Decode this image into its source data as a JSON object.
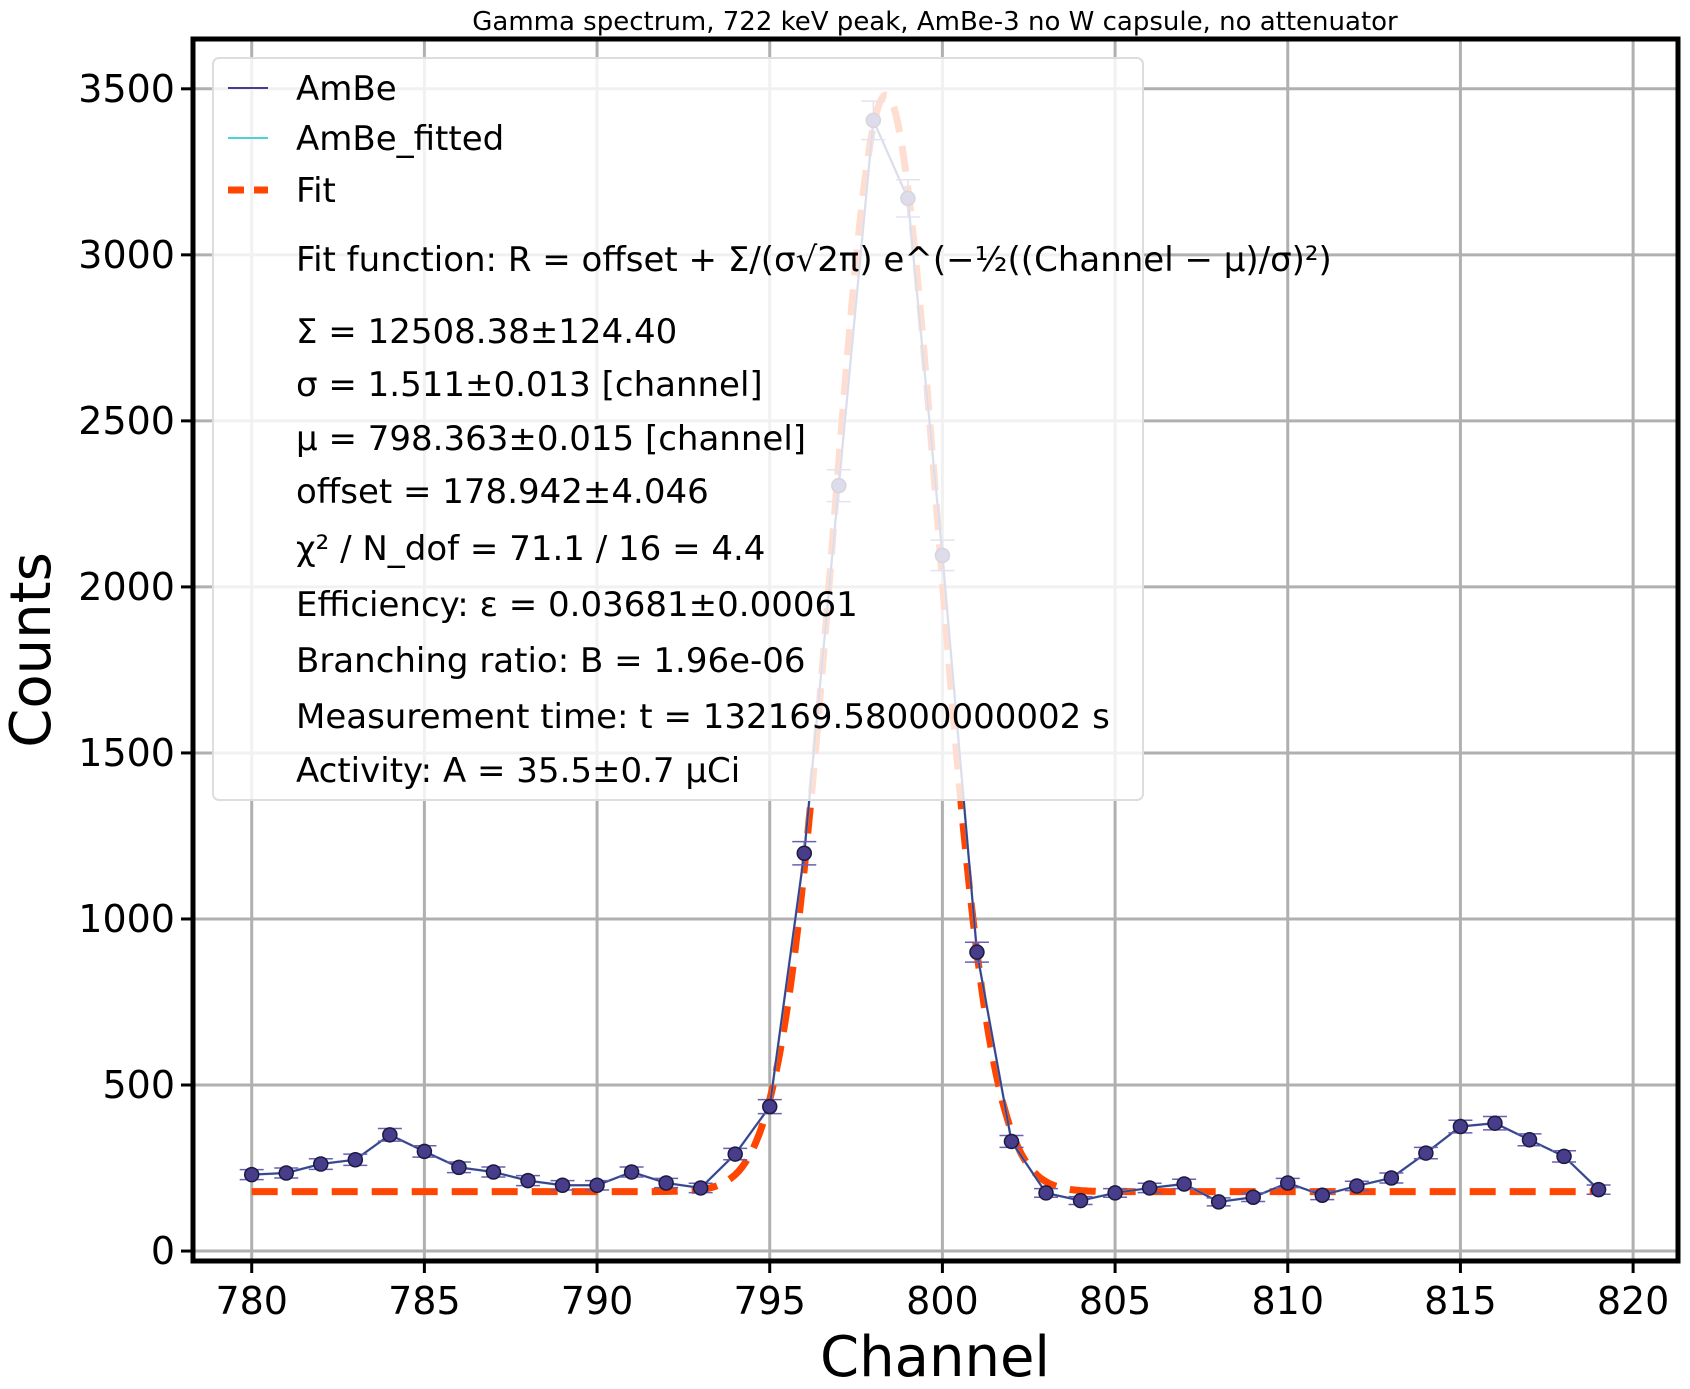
{
  "chart_data": {
    "type": "scatter",
    "title": "Gamma spectrum, 722 keV peak, AmBe-3 no W capsule, no attenuator",
    "xlabel": "Channel",
    "ylabel": "Counts",
    "xlim": [
      778.3,
      821.3
    ],
    "ylim": [
      -30,
      3650
    ],
    "xticks": [
      780,
      785,
      790,
      795,
      800,
      805,
      810,
      815,
      820
    ],
    "yticks": [
      0,
      500,
      1000,
      1500,
      2000,
      2500,
      3000,
      3500
    ],
    "grid": true,
    "legend_position": "upper-left",
    "colors": {
      "data": "#483d8b",
      "fitted": "#4fd1d9",
      "fit": "#ff4500",
      "grid": "#b0b0b0"
    },
    "series": [
      {
        "name": "AmBe",
        "x": [
          780,
          781,
          782,
          783,
          784,
          785,
          786,
          787,
          788,
          789,
          790,
          791,
          792,
          793,
          794,
          795,
          796,
          797,
          798,
          799,
          800,
          801,
          802,
          803,
          804,
          805,
          806,
          807,
          808,
          809,
          810,
          811,
          812,
          813,
          814,
          815,
          816,
          817,
          818,
          819
        ],
        "y": [
          230,
          235,
          262,
          275,
          350,
          300,
          252,
          238,
          212,
          198,
          198,
          238,
          205,
          190,
          292,
          435,
          1198,
          2305,
          3405,
          3170,
          2095,
          900,
          330,
          175,
          152,
          175,
          190,
          202,
          148,
          162,
          205,
          168,
          196,
          220,
          295,
          375,
          385,
          335,
          285,
          185
        ],
        "yerr": [
          15,
          15,
          16,
          17,
          19,
          17,
          16,
          15,
          15,
          14,
          14,
          15,
          14,
          14,
          17,
          21,
          35,
          48,
          58,
          56,
          46,
          30,
          18,
          13,
          12,
          13,
          14,
          14,
          12,
          13,
          14,
          13,
          14,
          15,
          17,
          19,
          20,
          18,
          17,
          14
        ]
      },
      {
        "name": "AmBe_fitted",
        "x": [
          780,
          781,
          782,
          783,
          784,
          785,
          786,
          787,
          788,
          789,
          790,
          791,
          792,
          793,
          794,
          795,
          796,
          797,
          798,
          799,
          800,
          801,
          802,
          803,
          804,
          805,
          806,
          807,
          808,
          809,
          810,
          811,
          812,
          813,
          814,
          815,
          816,
          817,
          818,
          819
        ],
        "y": [
          230,
          235,
          262,
          275,
          350,
          300,
          252,
          238,
          212,
          198,
          198,
          238,
          205,
          190,
          292,
          435,
          1198,
          2305,
          3405,
          3170,
          2095,
          900,
          330,
          175,
          152,
          175,
          190,
          202,
          148,
          162,
          205,
          168,
          196,
          220,
          295,
          375,
          385,
          335,
          285,
          185
        ]
      },
      {
        "name": "Fit",
        "function": "gaussian_plus_offset",
        "Sigma": 12508.38,
        "sigma": 1.511,
        "mu": 798.363,
        "offset": 178.942,
        "x_range": [
          780,
          819
        ]
      }
    ],
    "legend_text": [
      "Fit function: R = offset + Σ/(σ√2π) e^(−½((Channel − μ)/σ)²)",
      "Σ = 12508.38±124.40",
      "σ = 1.511±0.013 [channel]",
      "μ = 798.363±0.015 [channel]",
      "offset = 178.942±4.046",
      "χ² / N_dof = 71.1 / 16 = 4.4",
      "Efficiency: ε = 0.03681±0.00061",
      "Branching ratio: B = 1.96e-06",
      "Measurement time: t = 132169.58000000002 s",
      "Activity: A = 35.5±0.7 μCi"
    ]
  }
}
